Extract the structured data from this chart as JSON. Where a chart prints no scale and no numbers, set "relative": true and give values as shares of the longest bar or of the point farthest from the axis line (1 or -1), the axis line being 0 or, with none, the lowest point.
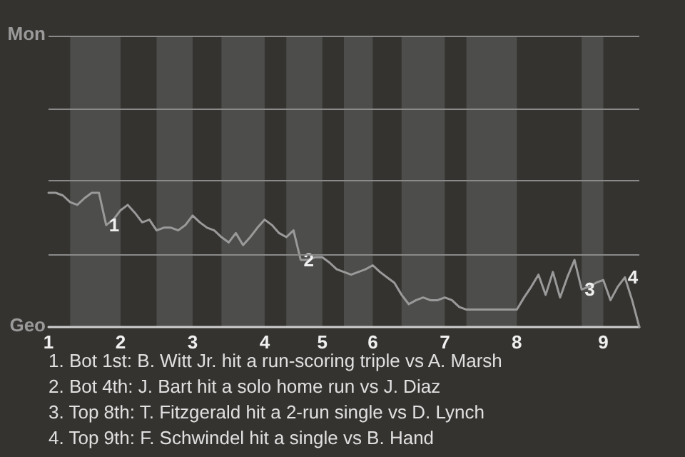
{
  "chart_data": {
    "type": "line",
    "relative": true,
    "categories": [
      "1",
      null,
      null,
      null,
      null,
      null,
      null,
      null,
      null,
      null,
      "2",
      null,
      null,
      null,
      null,
      null,
      null,
      null,
      null,
      null,
      "3",
      null,
      null,
      null,
      null,
      null,
      null,
      null,
      null,
      null,
      "4",
      null,
      null,
      null,
      null,
      null,
      null,
      null,
      "5",
      null,
      null,
      null,
      null,
      null,
      null,
      "6",
      null,
      null,
      null,
      null,
      null,
      null,
      null,
      null,
      null,
      "7",
      null,
      null,
      null,
      null,
      null,
      null,
      null,
      null,
      null,
      "8",
      null,
      null,
      null,
      null,
      null,
      null,
      null,
      null,
      null,
      null,
      null,
      "9",
      null,
      null,
      null,
      null,
      null
    ],
    "values": [
      1,
      1,
      0.98,
      0.93,
      0.91,
      0.96,
      1,
      1,
      0.76,
      0.8,
      0.87,
      0.91,
      0.85,
      0.78,
      0.8,
      0.72,
      0.74,
      0.74,
      0.72,
      0.76,
      0.83,
      0.78,
      0.74,
      0.72,
      0.67,
      0.63,
      0.7,
      0.61,
      0.67,
      0.74,
      0.8,
      0.76,
      0.7,
      0.67,
      0.72,
      0.5,
      0.5,
      0.52,
      0.52,
      0.48,
      0.43,
      0.41,
      0.39,
      0.41,
      0.43,
      0.46,
      0.41,
      0.37,
      0.33,
      0.24,
      0.17,
      0.2,
      0.22,
      0.2,
      0.2,
      0.22,
      0.2,
      0.15,
      0.13,
      0.13,
      0.13,
      0.13,
      0.13,
      0.13,
      0.13,
      0.13,
      0.22,
      0.3,
      0.39,
      0.24,
      0.41,
      0.22,
      0.37,
      0.5,
      0.28,
      0.3,
      0.33,
      0.35,
      0.2,
      0.3,
      0.37,
      0.2,
      0
    ],
    "color": "#9a9a9a",
    "marker": "none",
    "line_style": "solid",
    "ref_lines": [
      {
        "axis": "y",
        "value": 0.54,
        "color": "#8a8a8a"
      },
      {
        "axis": "y",
        "value": 1.09,
        "color": "#8a8a8a"
      },
      {
        "axis": "y",
        "value": 1.63,
        "color": "#8a8a8a"
      },
      {
        "axis": "y",
        "value": 2.17,
        "color": "#8a8a8a"
      }
    ],
    "annotations": [
      "Mon",
      "Geo",
      {
        "text": "1",
        "y": 0.76
      },
      {
        "text": "2",
        "y": 0.5
      },
      {
        "text": "3",
        "y": 0.28
      },
      {
        "text": "4",
        "y": 0.37
      },
      "1. Bot 1st: B. Witt Jr. hit a run-scoring triple vs A. Marsh",
      "2. Bot 4th: J. Bart hit a solo home run vs J. Diaz",
      "3. Top 8th: T. Fitzgerald hit a 2-run single vs D. Lynch",
      "4. Top 9th: F. Schwindel hit a single vs B. Hand"
    ]
  }
}
